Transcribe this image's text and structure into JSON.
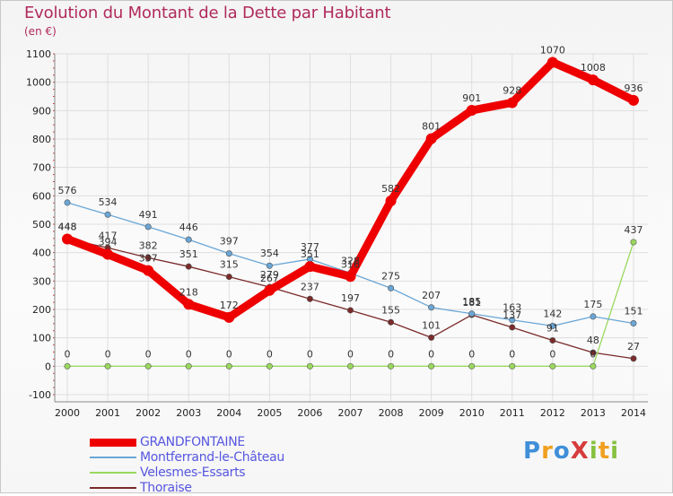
{
  "header": {
    "title": "Evolution du Montant de la Dette par Habitant",
    "subtitle": "(en €)"
  },
  "logo": {
    "text": "ProXiti",
    "letters": [
      {
        "ch": "P",
        "color": "#3f8fd8"
      },
      {
        "ch": "r",
        "color": "#f0a020"
      },
      {
        "ch": "o",
        "color": "#3f8fd8"
      },
      {
        "ch": "X",
        "color": "#d63c3c"
      },
      {
        "ch": "i",
        "color": "#86c040"
      },
      {
        "ch": "t",
        "color": "#f0a020"
      },
      {
        "ch": "i",
        "color": "#86c040"
      }
    ]
  },
  "chart_data": {
    "type": "line",
    "title": "Evolution du Montant de la Dette par Habitant",
    "subtitle": "(en €)",
    "x": [
      "2000",
      "2001",
      "2002",
      "2003",
      "2004",
      "2005",
      "2006",
      "2007",
      "2008",
      "2009",
      "2010",
      "2011",
      "2012",
      "2013",
      "2014"
    ],
    "ylim": [
      -100,
      1100
    ],
    "yticks": [
      -100,
      0,
      100,
      200,
      300,
      400,
      500,
      600,
      700,
      800,
      900,
      1000,
      1100
    ],
    "grid": true,
    "legend_position": "bottom-left",
    "series": [
      {
        "name": "GRANDFONTAINE",
        "color": "#ee0000",
        "style": "thick",
        "values": [
          448,
          394,
          337,
          218,
          172,
          267,
          351,
          316,
          582,
          801,
          901,
          928,
          1070,
          1008,
          936
        ]
      },
      {
        "name": "Montferrand-le-Château",
        "color": "#6aa6d6",
        "style": "thin",
        "values": [
          576,
          534,
          491,
          446,
          397,
          354,
          377,
          328,
          275,
          207,
          185,
          163,
          142,
          175,
          151
        ]
      },
      {
        "name": "Velesmes-Essarts",
        "color": "#9ad85e",
        "style": "thin",
        "values": [
          0,
          0,
          0,
          0,
          0,
          0,
          0,
          0,
          0,
          0,
          0,
          0,
          0,
          0,
          437
        ]
      },
      {
        "name": "Thoraise",
        "color": "#7a2a2a",
        "style": "thin",
        "values": [
          448,
          417,
          382,
          351,
          315,
          279,
          237,
          197,
          155,
          101,
          181,
          137,
          91,
          48,
          27
        ]
      }
    ]
  }
}
